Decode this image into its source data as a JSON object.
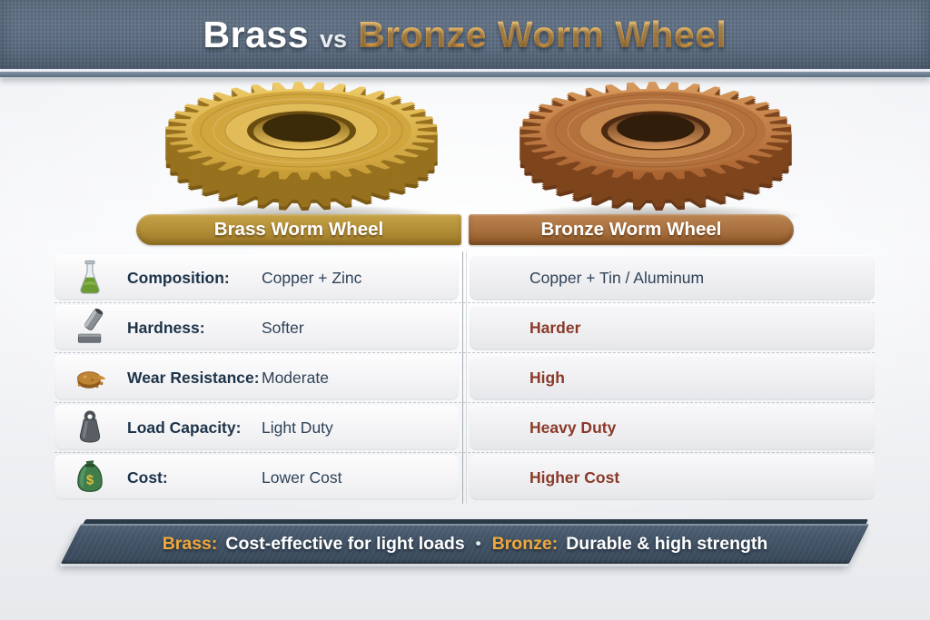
{
  "header": {
    "brass": "Brass",
    "vs": "vs",
    "rest": "Bronze Worm Wheel"
  },
  "columns": {
    "brass": "Brass Worm Wheel",
    "bronze": "Bronze Worm Wheel"
  },
  "rows": [
    {
      "icon": "flask-icon",
      "label": "Composition:",
      "brass": "Copper + Zinc",
      "bronze": "Copper + Tin / Aluminum"
    },
    {
      "icon": "hardness-icon",
      "label": "Hardness:",
      "brass": "Softer",
      "bronze": "Harder"
    },
    {
      "icon": "wear-icon",
      "label": "Wear Resistance:",
      "brass": "Moderate",
      "bronze": "High"
    },
    {
      "icon": "weight-icon",
      "label": "Load Capacity:",
      "brass": "Light Duty",
      "bronze": "Heavy Duty"
    },
    {
      "icon": "money-bag-icon",
      "label": "Cost:",
      "brass": "Lower Cost",
      "bronze": "Higher Cost"
    }
  ],
  "footer": {
    "brass_label": "Brass:",
    "brass_text": "Cost-effective for light loads",
    "dot": "•",
    "bronze_label": "Bronze:",
    "bronze_text": "Durable & high strength"
  },
  "colors": {
    "title_gold": "#eeb055",
    "emphasis_red": "#8a3928",
    "label_navy": "#1d3349",
    "value_slate": "#2f4257",
    "header_bg": "#5d6e80",
    "brass": "#d2a63e",
    "bronze": "#b5713c",
    "brass_banner": "#b08c36",
    "bronze_banner": "#a76f3e",
    "footer_bg": "#46586b"
  }
}
